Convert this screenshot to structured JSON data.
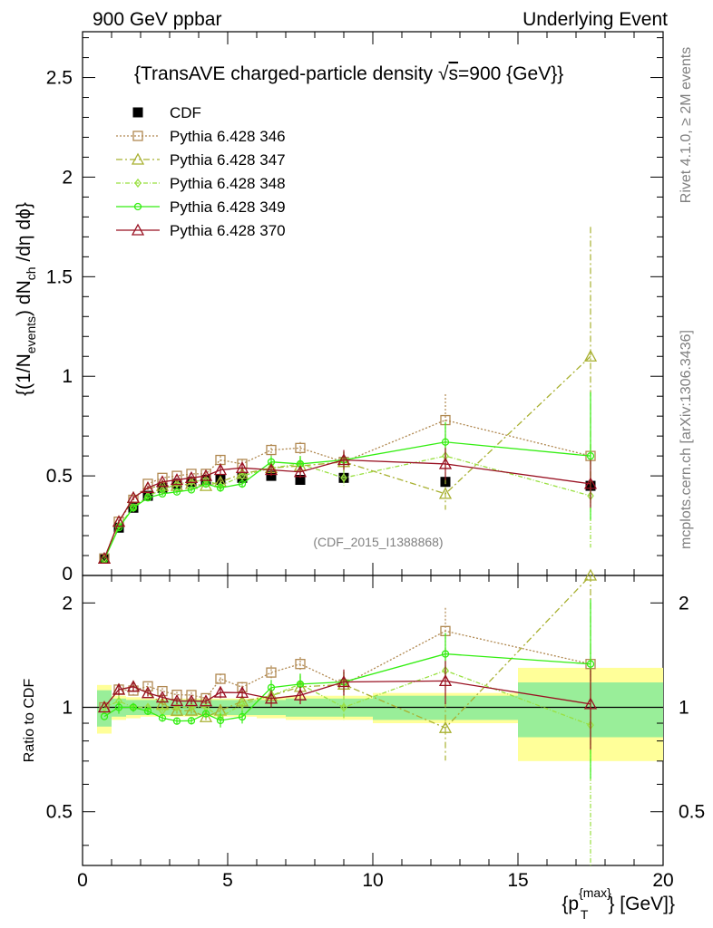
{
  "header": {
    "left": "900 GeV ppbar",
    "right": "Underlying Event"
  },
  "side_labels": {
    "rivet": "Rivet 4.1.0, ≥ 2M events",
    "mcplots": "mcplots.cern.ch [arXiv:1306.3436]"
  },
  "chart_data": {
    "type": "line",
    "title": "{TransAVE charged-particle density √s=900 {GeV}}",
    "title_parts": {
      "pre": "{TransAVE charged-particle density ",
      "sqrt": "√",
      "s": "s",
      "post": "=900 {GeV}}"
    },
    "watermark": "(CDF_2015_I1388868)",
    "ylabel": "{(1/N_events) dN_ch/dη dϕ}",
    "ylabel_parts": {
      "a": "{(1/N",
      "a_sub": "events",
      "b": ") dN",
      "b_sub": "ch",
      "c": " /dη  dϕ}"
    },
    "ratio_ylabel": "Ratio to CDF",
    "xlabel": "{p_T^{max}} [GeV]}",
    "xlabel_parts": {
      "a": "{p",
      "sup": "{max}",
      "sub": "T",
      "b": "} [GeV]}"
    },
    "xlim": [
      0,
      20
    ],
    "ylim": [
      0,
      2.73
    ],
    "ratio_ylim_log": [
      0.35,
      2.4
    ],
    "x_ticks": [
      "0",
      "5",
      "10",
      "15",
      "20"
    ],
    "y_ticks": [
      "0.5",
      "1",
      "1.5",
      "2",
      "2.5"
    ],
    "y_tick_values": [
      0.5,
      1,
      1.5,
      2,
      2.5
    ],
    "y_zero_label": "0",
    "ratio_y_ticks": [
      "0.5",
      "1",
      "2"
    ],
    "ratio_y_tick_values": [
      0.5,
      1,
      2
    ],
    "data": {
      "name": "CDF",
      "x": [
        0.75,
        1.25,
        1.75,
        2.25,
        2.75,
        3.25,
        3.75,
        4.25,
        4.75,
        5.5,
        6.5,
        7.5,
        9.0,
        12.5,
        17.5
      ],
      "y": [
        0.085,
        0.24,
        0.34,
        0.4,
        0.44,
        0.46,
        0.47,
        0.48,
        0.48,
        0.49,
        0.5,
        0.48,
        0.49,
        0.47,
        0.45
      ],
      "bins": [
        [
          0.5,
          1.0
        ],
        [
          1.0,
          1.5
        ],
        [
          1.5,
          2.0
        ],
        [
          2.0,
          2.5
        ],
        [
          2.5,
          3.0
        ],
        [
          3.0,
          3.5
        ],
        [
          3.5,
          4.0
        ],
        [
          4.0,
          4.5
        ],
        [
          4.5,
          5.0
        ],
        [
          5.0,
          6.0
        ],
        [
          6.0,
          7.0
        ],
        [
          7.0,
          8.0
        ],
        [
          8.0,
          10.0
        ],
        [
          10.0,
          15.0
        ],
        [
          15.0,
          20.0
        ]
      ],
      "band_stat": [
        0.12,
        0.06,
        0.05,
        0.05,
        0.05,
        0.05,
        0.05,
        0.05,
        0.05,
        0.05,
        0.05,
        0.06,
        0.06,
        0.08,
        0.18
      ],
      "band_total": [
        0.16,
        0.08,
        0.07,
        0.06,
        0.06,
        0.06,
        0.06,
        0.06,
        0.06,
        0.06,
        0.07,
        0.08,
        0.08,
        0.1,
        0.3
      ]
    },
    "series": [
      {
        "name": "Pythia 6.428 346",
        "color": "#b08850",
        "dash": "2,2",
        "marker": "square",
        "x": [
          0.75,
          1.25,
          1.75,
          2.25,
          2.75,
          3.25,
          3.75,
          4.25,
          4.75,
          5.5,
          6.5,
          7.5,
          9.0,
          12.5,
          17.5
        ],
        "y": [
          0.085,
          0.27,
          0.38,
          0.46,
          0.49,
          0.5,
          0.51,
          0.51,
          0.58,
          0.56,
          0.63,
          0.64,
          0.57,
          0.78,
          0.6
        ],
        "err": [
          0.005,
          0.01,
          0.01,
          0.01,
          0.01,
          0.01,
          0.01,
          0.01,
          0.02,
          0.02,
          0.03,
          0.03,
          0.05,
          0.13,
          0.0
        ]
      },
      {
        "name": "Pythia 6.428 347",
        "color": "#a8b030",
        "dash": "7,3,2,3",
        "marker": "triangle",
        "x": [
          0.75,
          1.25,
          1.75,
          2.25,
          2.75,
          3.25,
          3.75,
          4.25,
          4.75,
          5.5,
          6.5,
          7.5,
          9.0,
          12.5,
          17.5
        ],
        "y": [
          0.085,
          0.27,
          0.39,
          0.44,
          0.45,
          0.45,
          0.46,
          0.45,
          0.47,
          0.51,
          0.54,
          0.55,
          0.57,
          0.41,
          1.1
        ],
        "err": [
          0.005,
          0.01,
          0.01,
          0.01,
          0.01,
          0.01,
          0.01,
          0.01,
          0.02,
          0.02,
          0.03,
          0.04,
          0.05,
          0.08,
          0.65
        ]
      },
      {
        "name": "Pythia 6.428 348",
        "color": "#99e040",
        "dash": "5,2,1,2",
        "marker": "diamond",
        "x": [
          0.75,
          1.25,
          1.75,
          2.25,
          2.75,
          3.25,
          3.75,
          4.25,
          4.75,
          5.5,
          6.5,
          7.5,
          9.0,
          12.5,
          17.5
        ],
        "y": [
          0.085,
          0.25,
          0.34,
          0.4,
          0.43,
          0.46,
          0.47,
          0.48,
          0.45,
          0.5,
          0.54,
          0.56,
          0.49,
          0.6,
          0.4
        ],
        "err": [
          0.005,
          0.01,
          0.01,
          0.01,
          0.01,
          0.01,
          0.01,
          0.01,
          0.02,
          0.02,
          0.03,
          0.04,
          0.04,
          0.1,
          0.26
        ]
      },
      {
        "name": "Pythia 6.428 349",
        "color": "#33ee11",
        "dash": "",
        "marker": "circle",
        "x": [
          0.75,
          1.25,
          1.75,
          2.25,
          2.75,
          3.25,
          3.75,
          4.25,
          4.75,
          5.5,
          6.5,
          7.5,
          9.0,
          12.5,
          17.5
        ],
        "y": [
          0.08,
          0.24,
          0.34,
          0.39,
          0.41,
          0.42,
          0.43,
          0.46,
          0.44,
          0.46,
          0.57,
          0.56,
          0.58,
          0.67,
          0.6
        ],
        "err": [
          0.005,
          0.01,
          0.01,
          0.01,
          0.01,
          0.01,
          0.01,
          0.01,
          0.02,
          0.02,
          0.03,
          0.04,
          0.04,
          0.1,
          0.32
        ]
      },
      {
        "name": "Pythia 6.428 370",
        "color": "#991122",
        "dash": "",
        "marker": "triangle",
        "x": [
          0.75,
          1.25,
          1.75,
          2.25,
          2.75,
          3.25,
          3.75,
          4.25,
          4.75,
          5.5,
          6.5,
          7.5,
          9.0,
          12.5,
          17.5
        ],
        "y": [
          0.085,
          0.27,
          0.39,
          0.44,
          0.47,
          0.48,
          0.49,
          0.5,
          0.53,
          0.54,
          0.53,
          0.52,
          0.58,
          0.56,
          0.46
        ],
        "err": [
          0.005,
          0.01,
          0.01,
          0.01,
          0.01,
          0.01,
          0.01,
          0.01,
          0.02,
          0.02,
          0.03,
          0.03,
          0.05,
          0.08,
          0.12
        ]
      }
    ]
  }
}
